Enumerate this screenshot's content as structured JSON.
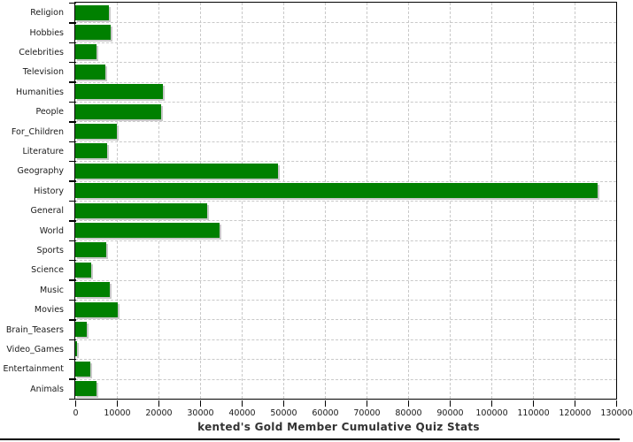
{
  "chart_data": {
    "type": "bar",
    "orientation": "horizontal",
    "title": "kented's Gold Member Cumulative Quiz Stats",
    "categories": [
      "Religion",
      "Hobbies",
      "Celebrities",
      "Television",
      "Humanities",
      "People",
      "For_Children",
      "Literature",
      "Geography",
      "History",
      "General",
      "World",
      "Sports",
      "Science",
      "Music",
      "Movies",
      "Brain_Teasers",
      "Video_Games",
      "Entertainment",
      "Animals"
    ],
    "values": [
      8000,
      8500,
      5200,
      7200,
      21100,
      20700,
      10100,
      7600,
      48800,
      125600,
      31700,
      34700,
      7500,
      3900,
      8400,
      10200,
      2800,
      500,
      3700,
      5200
    ],
    "xlim": [
      0,
      130000
    ],
    "x_ticks": [
      0,
      10000,
      20000,
      30000,
      40000,
      50000,
      60000,
      70000,
      80000,
      90000,
      100000,
      110000,
      120000,
      130000
    ],
    "x_tick_labels": [
      "0",
      "10000",
      "20000",
      "30000",
      "40000",
      "50000",
      "60000",
      "70000",
      "80000",
      "90000",
      "100000",
      "110000",
      "120000",
      "130000"
    ],
    "grid": true,
    "legend": false,
    "colors": {
      "bar": "#008000",
      "bar_shadow": "#c9c9c9",
      "grid": "#c9c9c9",
      "axis": "#000000",
      "text": "#1a1a1a",
      "title": "#333333",
      "background": "#ffffff"
    }
  }
}
